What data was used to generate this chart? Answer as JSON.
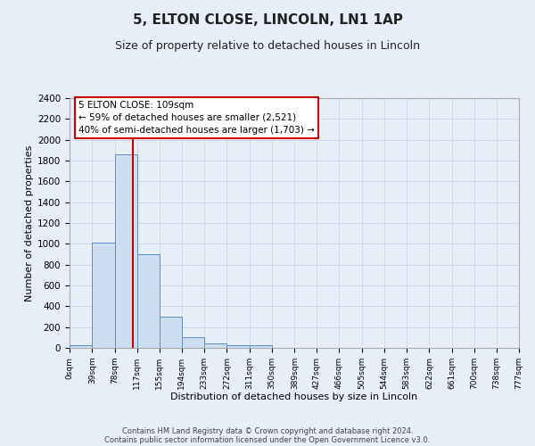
{
  "title": "5, ELTON CLOSE, LINCOLN, LN1 1AP",
  "subtitle": "Size of property relative to detached houses in Lincoln",
  "xlabel": "Distribution of detached houses by size in Lincoln",
  "ylabel": "Number of detached properties",
  "footer_line1": "Contains HM Land Registry data © Crown copyright and database right 2024.",
  "footer_line2": "Contains public sector information licensed under the Open Government Licence v3.0.",
  "bar_edges": [
    0,
    39,
    78,
    117,
    155,
    194,
    233,
    272,
    311,
    350,
    389,
    427,
    466,
    505,
    544,
    583,
    622,
    661,
    700,
    738,
    777
  ],
  "bar_heights": [
    25,
    1010,
    1860,
    900,
    300,
    100,
    45,
    30,
    25,
    0,
    0,
    0,
    0,
    0,
    0,
    0,
    0,
    0,
    0,
    0
  ],
  "tick_labels": [
    "0sqm",
    "39sqm",
    "78sqm",
    "117sqm",
    "155sqm",
    "194sqm",
    "233sqm",
    "272sqm",
    "311sqm",
    "350sqm",
    "389sqm",
    "427sqm",
    "466sqm",
    "505sqm",
    "544sqm",
    "583sqm",
    "622sqm",
    "661sqm",
    "700sqm",
    "738sqm",
    "777sqm"
  ],
  "bar_color": "#ccddf0",
  "bar_edge_color": "#5b8fc9",
  "grid_color": "#d0d8e8",
  "bg_color": "#e8eef8",
  "vline_x": 109,
  "vline_color": "#cc0000",
  "annotation_text": "5 ELTON CLOSE: 109sqm\n← 59% of detached houses are smaller (2,521)\n40% of semi-detached houses are larger (1,703) →",
  "annotation_box_color": "#ffffff",
  "annotation_box_edge": "#cc0000",
  "ylim": [
    0,
    2400
  ],
  "yticks": [
    0,
    200,
    400,
    600,
    800,
    1000,
    1200,
    1400,
    1600,
    1800,
    2000,
    2200,
    2400
  ]
}
